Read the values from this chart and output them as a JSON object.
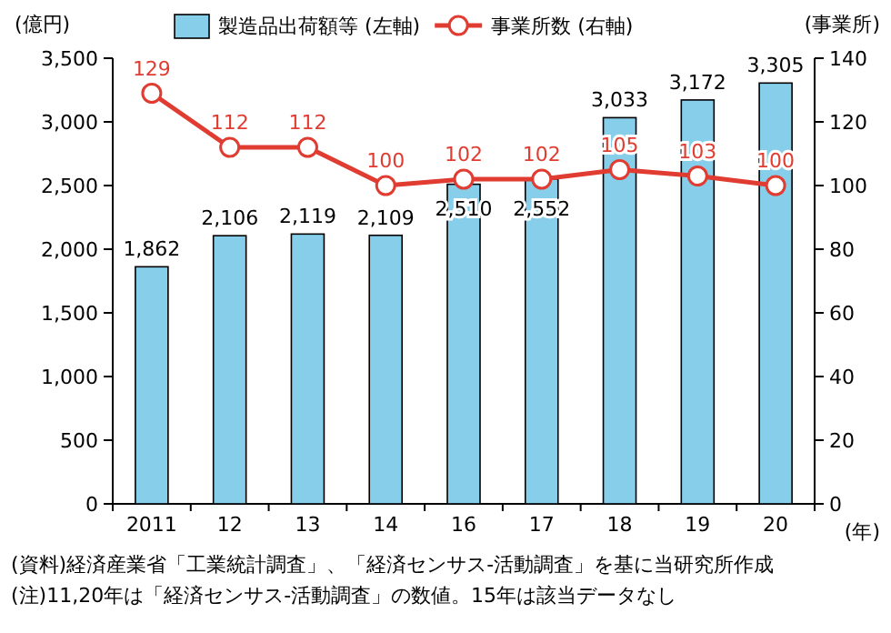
{
  "chart_data": {
    "type": "bar",
    "categories": [
      "2011",
      "12",
      "13",
      "14",
      "16",
      "17",
      "18",
      "19",
      "20"
    ],
    "series": [
      {
        "name": "製造品出荷額等 (左軸)",
        "color": "#87ceeb",
        "values": [
          1862,
          2106,
          2119,
          2109,
          2510,
          2552,
          3033,
          3172,
          3305
        ],
        "value_labels": [
          "1,862",
          "2,106",
          "2,119",
          "2,109",
          "2,510",
          "2,552",
          "3,033",
          "3,172",
          "3,305"
        ]
      },
      {
        "name": "事業所数 (右軸)",
        "type": "line",
        "axis": "y2",
        "color": "#e03c31",
        "values": [
          129,
          112,
          112,
          100,
          102,
          102,
          105,
          103,
          100
        ],
        "value_labels": [
          "129",
          "112",
          "112",
          "100",
          "102",
          "102",
          "105",
          "103",
          "100"
        ]
      }
    ],
    "ylim": [
      0,
      3500
    ],
    "yticks": [
      0,
      {
        "value": 500,
        "label": "500"
      },
      {
        "value": 1000,
        "label": "1,000"
      },
      {
        "value": 1500,
        "label": "1,500"
      },
      {
        "value": 2000,
        "label": "2,000"
      },
      {
        "value": 2500,
        "label": "2,500"
      },
      {
        "value": 3000,
        "label": "3,000"
      },
      {
        "value": 3500,
        "label": "3,500"
      }
    ],
    "y2lim": [
      0,
      140
    ],
    "y2ticks": [
      0,
      20,
      40,
      60,
      80,
      100,
      120,
      140
    ],
    "ylabel": "(億円)",
    "y2label": "(事業所)",
    "xlabel": "(年)",
    "legend": "top",
    "marker": "circle",
    "annotations": [
      "(資料)経済産業省「工業統計調査」、「経済センサス-活動調査」を基に当研究所作成",
      "(注)11,20年は「経済センサス-活動調査」の数値。15年は該当データなし"
    ]
  }
}
